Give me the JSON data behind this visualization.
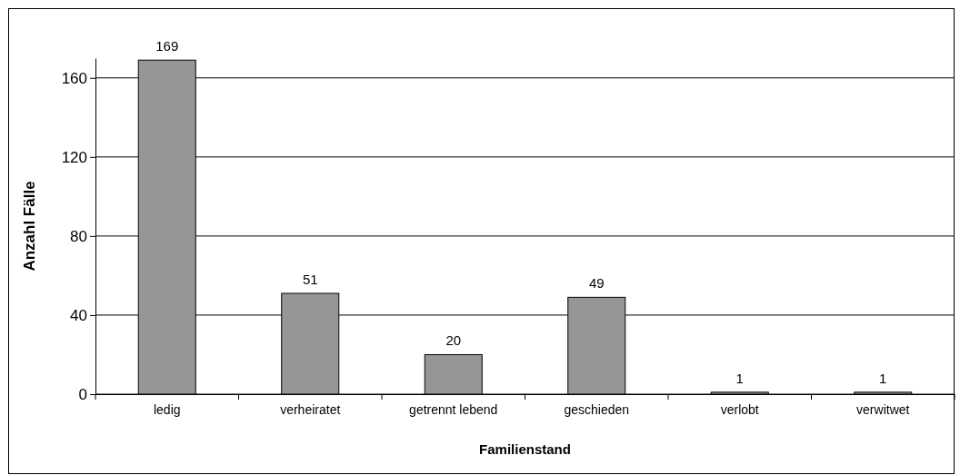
{
  "chart_data": {
    "type": "bar",
    "xlabel": "Familienstand",
    "ylabel": "Anzahl Fälle",
    "categories": [
      "ledig",
      "verheiratet",
      "getrennt lebend",
      "geschieden",
      "verlobt",
      "verwitwet"
    ],
    "values": [
      169,
      51,
      20,
      49,
      1,
      1
    ],
    "color": "#969696",
    "ylim": [
      0,
      170
    ],
    "yticks": [
      0,
      40,
      80,
      120,
      160
    ],
    "grid": "y",
    "data_labels": true
  }
}
